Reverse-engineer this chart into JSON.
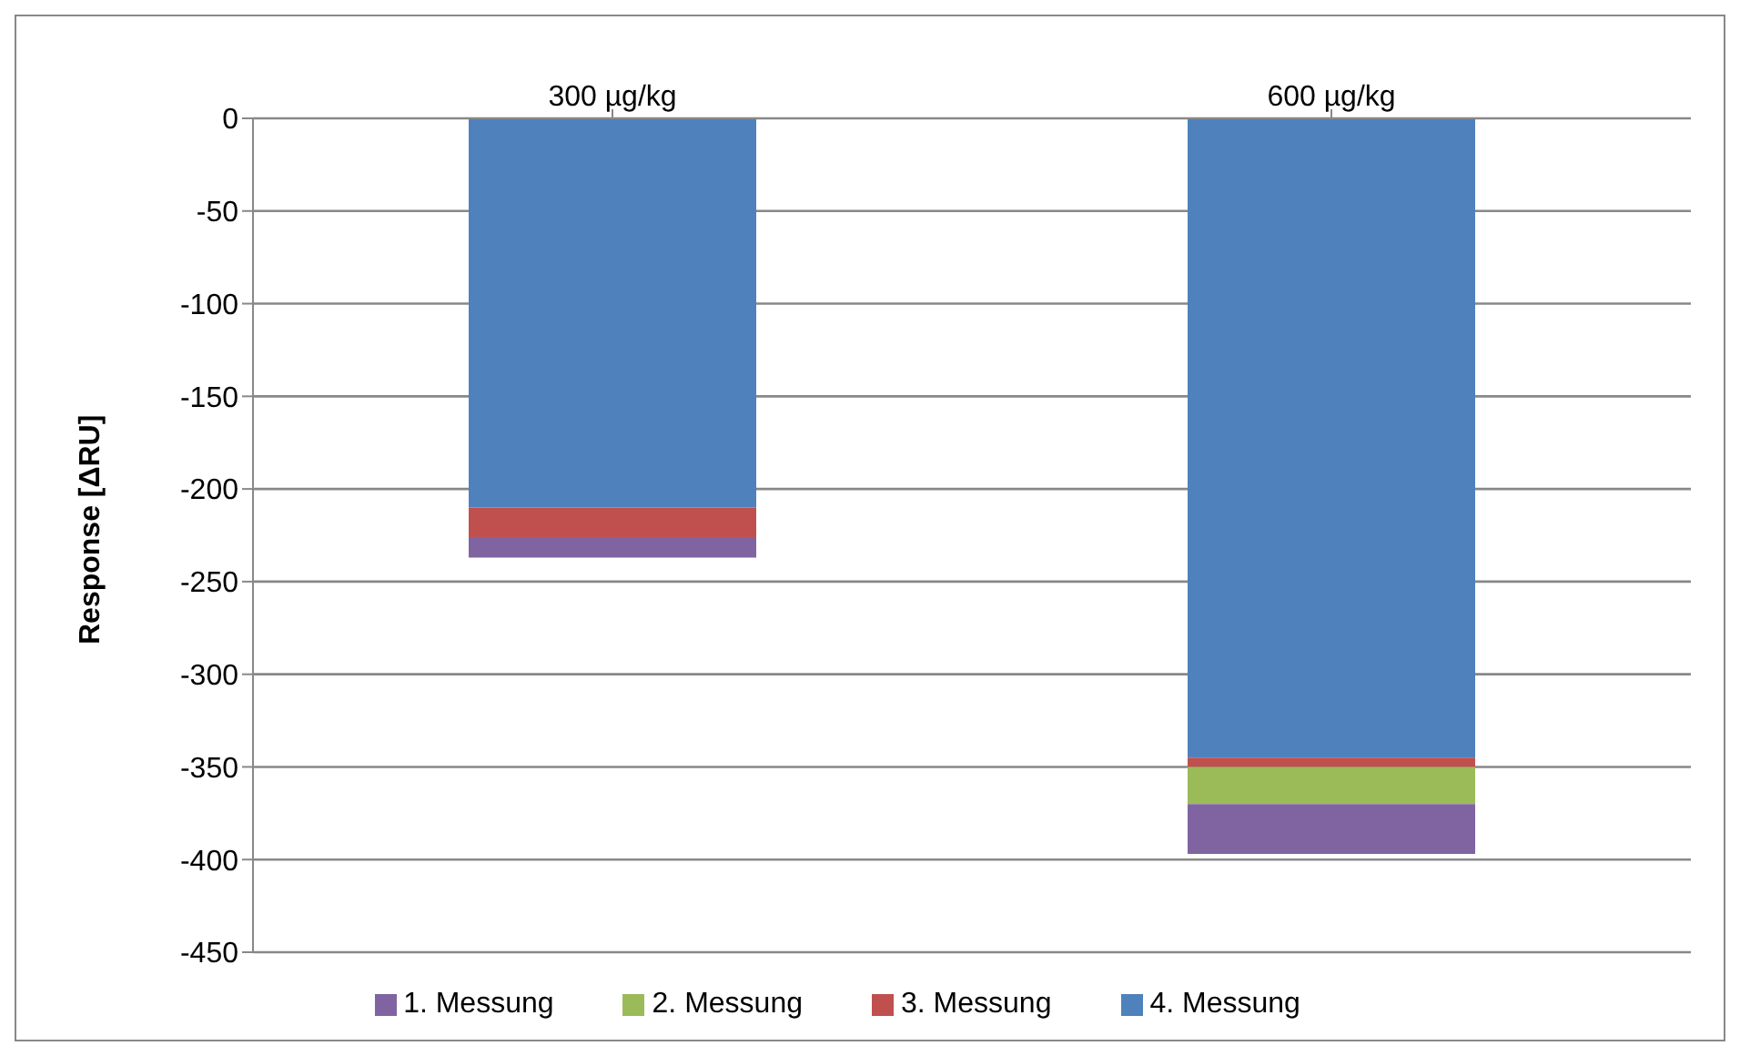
{
  "chart_data": {
    "type": "bar",
    "stacked": true,
    "categories": [
      "300 µg/kg",
      "600 µg/kg"
    ],
    "ylabel": "Response [ΔRU]",
    "ylim": [
      -450,
      0
    ],
    "yticks": [
      -450,
      -400,
      -350,
      -300,
      -250,
      -200,
      -150,
      -100,
      -50,
      0
    ],
    "grid": "y",
    "legend": "bottom",
    "series": [
      {
        "name": "4. Messung",
        "color": "#4f81bd",
        "values": [
          -210,
          -345
        ]
      },
      {
        "name": "3. Messung",
        "color": "#c0504d",
        "values": [
          -16,
          -5
        ]
      },
      {
        "name": "2. Messung",
        "color": "#9bbb59",
        "values": [
          null,
          -20
        ]
      },
      {
        "name": "1. Messung",
        "color": "#8064a2",
        "values": [
          -11,
          -27
        ]
      }
    ]
  }
}
